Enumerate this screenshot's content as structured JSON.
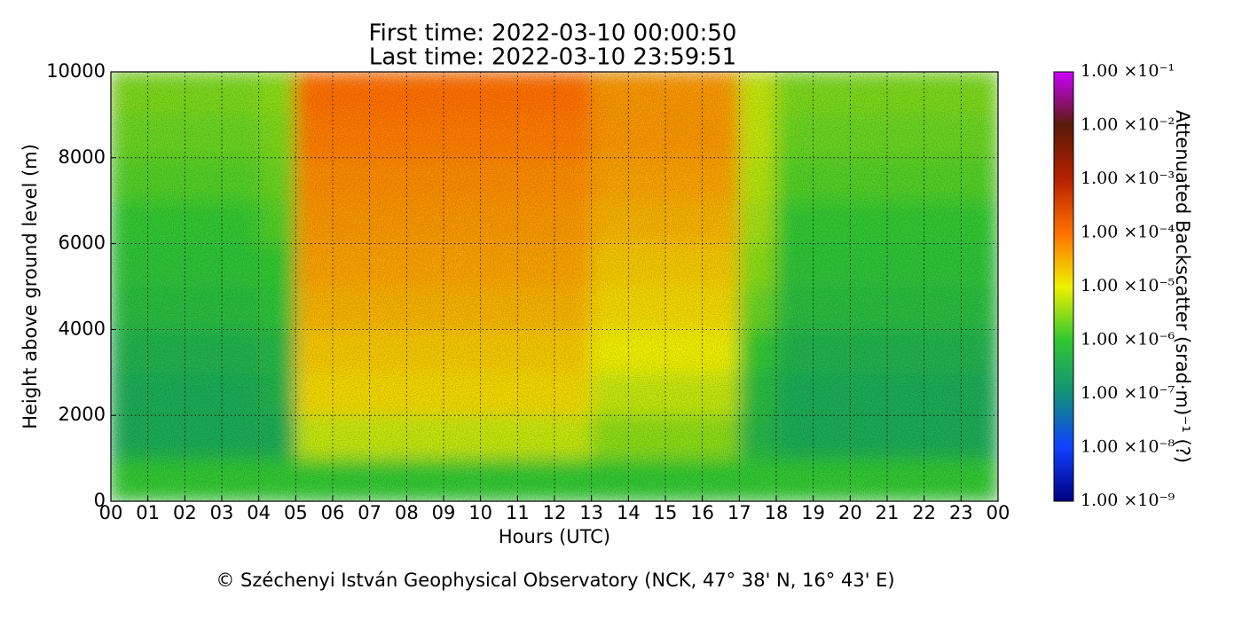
{
  "chart_data": {
    "type": "heatmap",
    "title": "First time: 2022-03-10 00:00:50",
    "subtitle": "Last time: 2022-03-10 23:59:51",
    "xlabel": "Hours (UTC)",
    "ylabel": "Height above ground level (m)",
    "footer": "© Széchenyi István Geophysical Observatory (NCK, 47° 38' N, 16° 43' E)",
    "colorbar_label": "Attenuated Backscatter (srad·m)⁻¹ (?)",
    "grid": true,
    "xlim": [
      0,
      24
    ],
    "xticks": [
      {
        "value": 0,
        "label": "00"
      },
      {
        "value": 1,
        "label": "01"
      },
      {
        "value": 2,
        "label": "02"
      },
      {
        "value": 3,
        "label": "03"
      },
      {
        "value": 4,
        "label": "04"
      },
      {
        "value": 5,
        "label": "05"
      },
      {
        "value": 6,
        "label": "06"
      },
      {
        "value": 7,
        "label": "07"
      },
      {
        "value": 8,
        "label": "08"
      },
      {
        "value": 9,
        "label": "09"
      },
      {
        "value": 10,
        "label": "10"
      },
      {
        "value": 11,
        "label": "11"
      },
      {
        "value": 12,
        "label": "12"
      },
      {
        "value": 13,
        "label": "13"
      },
      {
        "value": 14,
        "label": "14"
      },
      {
        "value": 15,
        "label": "15"
      },
      {
        "value": 16,
        "label": "16"
      },
      {
        "value": 17,
        "label": "17"
      },
      {
        "value": 18,
        "label": "18"
      },
      {
        "value": 19,
        "label": "19"
      },
      {
        "value": 20,
        "label": "20"
      },
      {
        "value": 21,
        "label": "21"
      },
      {
        "value": 22,
        "label": "22"
      },
      {
        "value": 23,
        "label": "23"
      },
      {
        "value": 24,
        "label": "00"
      }
    ],
    "ylim": [
      0,
      10000
    ],
    "yticks": [
      0,
      2000,
      4000,
      6000,
      8000,
      10000
    ],
    "clim": [
      1e-09,
      0.1
    ],
    "log_color_scale": true,
    "colormap": [
      "#000080",
      "#1040ff",
      "#10907a",
      "#30c830",
      "#f0f000",
      "#ff7000",
      "#b82000",
      "#5a1a08",
      "#cc00ff"
    ],
    "cticks": [
      {
        "value": 1e-09,
        "label": "1.00 ×10⁻⁹"
      },
      {
        "value": 1e-08,
        "label": "1.00 ×10⁻⁸"
      },
      {
        "value": 1e-07,
        "label": "1.00 ×10⁻⁷"
      },
      {
        "value": 1e-06,
        "label": "1.00 ×10⁻⁶"
      },
      {
        "value": 1e-05,
        "label": "1.00 ×10⁻⁵"
      },
      {
        "value": 0.0001,
        "label": "1.00 ×10⁻⁴"
      },
      {
        "value": 0.001,
        "label": "1.00 ×10⁻³"
      },
      {
        "value": 0.01,
        "label": "1.00 ×10⁻²"
      },
      {
        "value": 0.1,
        "label": "1.00 ×10⁻¹"
      }
    ],
    "x_bins": [
      0,
      1,
      2,
      3,
      4,
      5,
      6,
      7,
      8,
      9,
      10,
      11,
      12,
      13,
      14,
      15,
      16,
      17,
      18,
      19,
      20,
      21,
      22,
      23,
      24
    ],
    "y_bins": [
      0,
      1000,
      2000,
      3000,
      4000,
      5000,
      6000,
      7000,
      8000,
      9000,
      10000
    ],
    "values": [
      [
        1e-06,
        1e-06,
        1e-06,
        1e-06,
        1e-06,
        1e-06,
        1e-06,
        1e-06,
        1e-06,
        1e-06,
        1e-06,
        1e-06,
        1e-06,
        1e-06,
        1e-06,
        1e-06,
        1e-06,
        1e-06,
        1e-06,
        1e-06,
        1e-06,
        1e-06,
        1e-06,
        1e-06
      ],
      [
        3e-07,
        3e-07,
        3e-07,
        3e-07,
        3e-07,
        6e-06,
        6e-06,
        6e-06,
        6e-06,
        6e-06,
        6e-06,
        6e-06,
        6e-06,
        3e-06,
        3e-06,
        3e-06,
        3e-06,
        5e-07,
        3e-07,
        3e-07,
        3e-07,
        3e-07,
        3e-07,
        3e-07
      ],
      [
        3e-07,
        3e-07,
        3e-07,
        3e-07,
        4e-07,
        1.5e-05,
        1.5e-05,
        1.5e-05,
        1.5e-05,
        1.5e-05,
        1.5e-05,
        1.5e-05,
        1.5e-05,
        6e-06,
        6e-06,
        6e-06,
        6e-06,
        6e-07,
        3e-07,
        3e-07,
        3e-07,
        3e-07,
        3e-07,
        3e-07
      ],
      [
        4e-07,
        4e-07,
        4e-07,
        4e-07,
        5e-07,
        2e-05,
        2e-05,
        2e-05,
        2e-05,
        2e-05,
        2e-05,
        2e-05,
        2e-05,
        1e-05,
        1e-05,
        1e-05,
        1e-05,
        1e-06,
        4e-07,
        4e-07,
        4e-07,
        4e-07,
        4e-07,
        4e-07
      ],
      [
        6e-07,
        6e-07,
        6e-07,
        6e-07,
        8e-07,
        3e-05,
        3e-05,
        3e-05,
        3e-05,
        3e-05,
        3e-05,
        3e-05,
        3e-05,
        1.5e-05,
        1.5e-05,
        1.5e-05,
        1.5e-05,
        2e-06,
        6e-07,
        6e-07,
        6e-07,
        6e-07,
        6e-07,
        6e-07
      ],
      [
        8e-07,
        8e-07,
        8e-07,
        8e-07,
        1e-06,
        4e-05,
        4e-05,
        4e-05,
        4e-05,
        4e-05,
        4e-05,
        4e-05,
        4e-05,
        2e-05,
        2e-05,
        2e-05,
        2e-05,
        3e-06,
        8e-07,
        8e-07,
        8e-07,
        8e-07,
        8e-07,
        8e-07
      ],
      [
        1e-06,
        1e-06,
        1e-06,
        1e-06,
        1.5e-06,
        5e-05,
        5e-05,
        5e-05,
        5e-05,
        5e-05,
        5e-05,
        5e-05,
        5e-05,
        3e-05,
        3e-05,
        3e-05,
        3e-05,
        4e-06,
        1e-06,
        1e-06,
        1e-06,
        1e-06,
        1e-06,
        1e-06
      ],
      [
        1.5e-06,
        1.5e-06,
        1.5e-06,
        1.5e-06,
        2e-06,
        6e-05,
        6e-05,
        6e-05,
        6e-05,
        6e-05,
        6e-05,
        6e-05,
        6e-05,
        4e-05,
        4e-05,
        4e-05,
        4e-05,
        5e-06,
        1.5e-06,
        1.5e-06,
        1.5e-06,
        1.5e-06,
        1.5e-06,
        1.5e-06
      ],
      [
        2e-06,
        2e-06,
        2e-06,
        2e-06,
        2.5e-06,
        8e-05,
        8e-05,
        8e-05,
        8e-05,
        8e-05,
        8e-05,
        8e-05,
        8e-05,
        5e-05,
        5e-05,
        5e-05,
        5e-05,
        6e-06,
        2e-06,
        2e-06,
        2e-06,
        2e-06,
        2e-06,
        2e-06
      ],
      [
        2.5e-06,
        2.5e-06,
        2.5e-06,
        2.5e-06,
        3e-06,
        0.0001,
        0.0001,
        0.0001,
        0.0001,
        0.0001,
        0.0001,
        0.0001,
        0.0001,
        5e-05,
        5e-05,
        5e-05,
        5e-05,
        6e-06,
        2.5e-06,
        2.5e-06,
        2.5e-06,
        2.5e-06,
        2.5e-06,
        2.5e-06
      ]
    ]
  }
}
